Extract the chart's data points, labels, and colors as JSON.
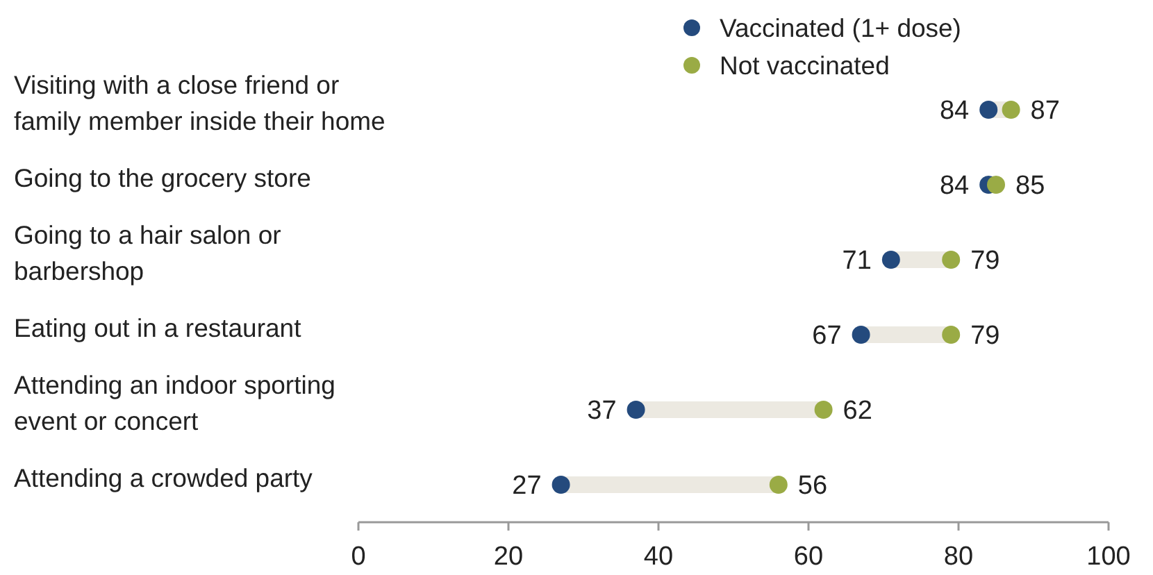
{
  "chart_data": {
    "type": "scatter",
    "orientation": "horizontal",
    "legend": "top",
    "data_labels": true,
    "marker": "circle",
    "categories": [
      "Visiting with a close friend or family member inside their home",
      "Going to the grocery store",
      "Going to a hair salon or barbershop",
      "Eating out in a restaurant",
      "Attending an indoor sporting event or concert",
      "Attending a crowded party"
    ],
    "series": [
      {
        "name": "Vaccinated (1+ dose)",
        "color": "#244a7d",
        "values": [
          84,
          84,
          71,
          67,
          37,
          27
        ]
      },
      {
        "name": "Not vaccinated",
        "color": "#9aab45",
        "values": [
          87,
          85,
          79,
          79,
          62,
          56
        ]
      }
    ],
    "xlim": [
      0,
      100
    ],
    "xticks": [
      0,
      20,
      40,
      60,
      80,
      100
    ]
  }
}
